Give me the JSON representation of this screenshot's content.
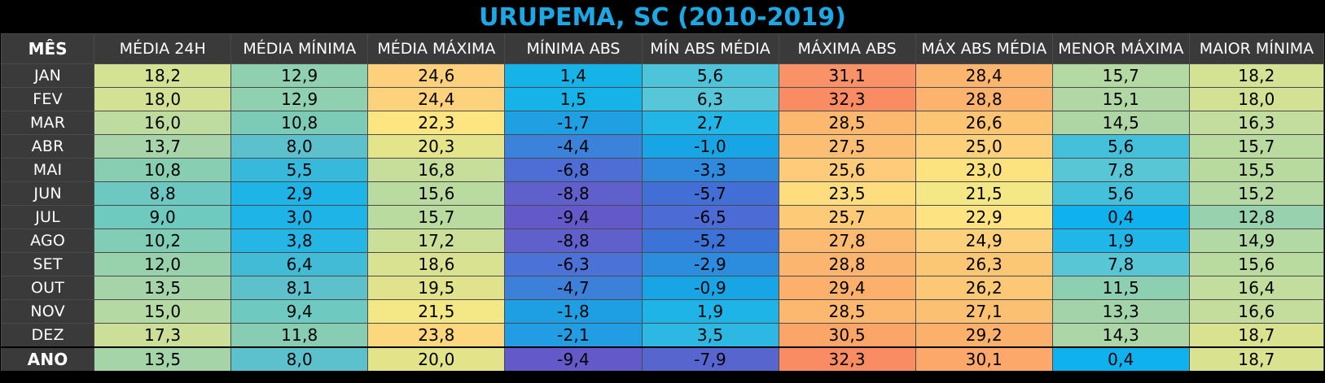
{
  "title": "URUPEMA, SC (2010-2019)",
  "headers": [
    "MÊS",
    "MÉDIA 24H",
    "MÉDIA MÍNIMA",
    "MÉDIA MÁXIMA",
    "MÍNIMA ABS",
    "MÍN ABS MÉDIA",
    "MÁXIMA ABS",
    "MÁX ABS MÉDIA",
    "MENOR MÁXIMA",
    "MAIOR MÍNIMA"
  ],
  "rows": [
    {
      "month": "JAN",
      "values": [
        "18,2",
        "12,9",
        "24,6",
        "1,4",
        "5,6",
        "31,1",
        "28,4",
        "15,7",
        "18,2"
      ],
      "colors": [
        "#d4e294",
        "#8fd0b0",
        "#fdd07c",
        "#16b3e8",
        "#4ec4db",
        "#f99266",
        "#fcb56e",
        "#b4d9a2",
        "#d4e294"
      ]
    },
    {
      "month": "FEV",
      "values": [
        "18,0",
        "12,9",
        "24,4",
        "1,5",
        "6,3",
        "32,3",
        "28,8",
        "15,1",
        "18,0"
      ],
      "colors": [
        "#d3e195",
        "#8fd0b0",
        "#fdd27c",
        "#16b3e8",
        "#56c6d8",
        "#f98c63",
        "#fcb36d",
        "#b1d8a4",
        "#d3e195"
      ]
    },
    {
      "month": "MAR",
      "values": [
        "16,0",
        "10,8",
        "22,3",
        "-1,7",
        "2,7",
        "28,5",
        "26,6",
        "14,5",
        "16,3"
      ],
      "colors": [
        "#bedca0",
        "#7ccbb6",
        "#fde681",
        "#1ea0e3",
        "#22b6e6",
        "#fcb86f",
        "#fcc574",
        "#aed6a5",
        "#c3dd9e"
      ]
    },
    {
      "month": "ABR",
      "values": [
        "13,7",
        "8,0",
        "20,3",
        "-4,4",
        "-1,0",
        "27,5",
        "25,0",
        "5,6",
        "15,7"
      ],
      "colors": [
        "#a7d4a8",
        "#5cc1cc",
        "#e4e48a",
        "#3b83da",
        "#17a5e6",
        "#fcbe72",
        "#fdd07c",
        "#45c0da",
        "#badb9f"
      ]
    },
    {
      "month": "MAI",
      "values": [
        "10,8",
        "5,5",
        "16,8",
        "-6,8",
        "-3,3",
        "25,6",
        "23,0",
        "7,8",
        "15,5"
      ],
      "colors": [
        "#88ceb3",
        "#37b9dc",
        "#c7de9a",
        "#4f6ed5",
        "#2f89dd",
        "#fdcb79",
        "#fde27f",
        "#58c6d4",
        "#b8da9f"
      ]
    },
    {
      "month": "JUN",
      "values": [
        "8,8",
        "2,9",
        "15,6",
        "-8,8",
        "-5,7",
        "23,5",
        "21,5",
        "5,6",
        "15,2"
      ],
      "colors": [
        "#6cc8c0",
        "#1eb4e8",
        "#badb9f",
        "#5f60cc",
        "#426fd5",
        "#fddd7e",
        "#f4e886",
        "#45c0da",
        "#b4d9a2"
      ]
    },
    {
      "month": "JUL",
      "values": [
        "9,0",
        "3,0",
        "15,7",
        "-9,4",
        "-6,5",
        "25,7",
        "22,9",
        "0,4",
        "12,8"
      ],
      "colors": [
        "#6ec9bf",
        "#1fb4e8",
        "#badb9f",
        "#6459c8",
        "#4c6bd4",
        "#fdca78",
        "#fde381",
        "#0fb2ee",
        "#98d1ae"
      ]
    },
    {
      "month": "AGO",
      "values": [
        "10,2",
        "3,8",
        "17,2",
        "-8,8",
        "-5,2",
        "27,8",
        "24,9",
        "1,9",
        "14,9"
      ],
      "colors": [
        "#82cdb5",
        "#26b6e6",
        "#ccdf98",
        "#5f60cc",
        "#3c73d7",
        "#fcbb71",
        "#fdd17c",
        "#21b6e8",
        "#b2d8a3"
      ]
    },
    {
      "month": "SET",
      "values": [
        "12,0",
        "6,4",
        "18,6",
        "-6,3",
        "-2,9",
        "28,8",
        "26,3",
        "7,8",
        "15,6"
      ],
      "colors": [
        "#98d2ac",
        "#42bcd6",
        "#d8e291",
        "#4b72d7",
        "#2c8cde",
        "#fcb56e",
        "#fcc775",
        "#58c6d4",
        "#badb9f"
      ]
    },
    {
      "month": "OUT",
      "values": [
        "13,5",
        "8,1",
        "19,5",
        "-4,7",
        "-0,9",
        "29,4",
        "26,2",
        "11,5",
        "16,4"
      ],
      "colors": [
        "#a5d4a9",
        "#5dc1cc",
        "#e1e38c",
        "#3d80da",
        "#18a5e6",
        "#fcb06c",
        "#fcc876",
        "#8dcfb1",
        "#c2dd9e"
      ]
    },
    {
      "month": "NOV",
      "values": [
        "15,0",
        "9,4",
        "21,5",
        "-1,8",
        "1,9",
        "28,5",
        "27,1",
        "13,3",
        "16,6"
      ],
      "colors": [
        "#b4d9a2",
        "#6ec9c0",
        "#f4e886",
        "#1f9fe3",
        "#1eb4e8",
        "#fcb86f",
        "#fcc073",
        "#a3d3a9",
        "#c4dd9d"
      ]
    },
    {
      "month": "DEZ",
      "values": [
        "17,3",
        "11,8",
        "23,8",
        "-2,1",
        "3,5",
        "30,5",
        "29,2",
        "14,3",
        "18,7"
      ],
      "colors": [
        "#ccdf98",
        "#86cdb4",
        "#fdd77d",
        "#229ce2",
        "#2cb8e2",
        "#fba568",
        "#fbb06c",
        "#acd6a6",
        "#d9e28f"
      ]
    },
    {
      "month": "ANO",
      "values": [
        "13,5",
        "8,0",
        "20,0",
        "-9,4",
        "-7,9",
        "32,3",
        "30,1",
        "0,4",
        "18,7"
      ],
      "colors": [
        "#a5d4a9",
        "#5cc1cc",
        "#e3e48a",
        "#6459c8",
        "#5766cf",
        "#f98c63",
        "#fba86a",
        "#0fb2ee",
        "#d9e28f"
      ]
    }
  ]
}
